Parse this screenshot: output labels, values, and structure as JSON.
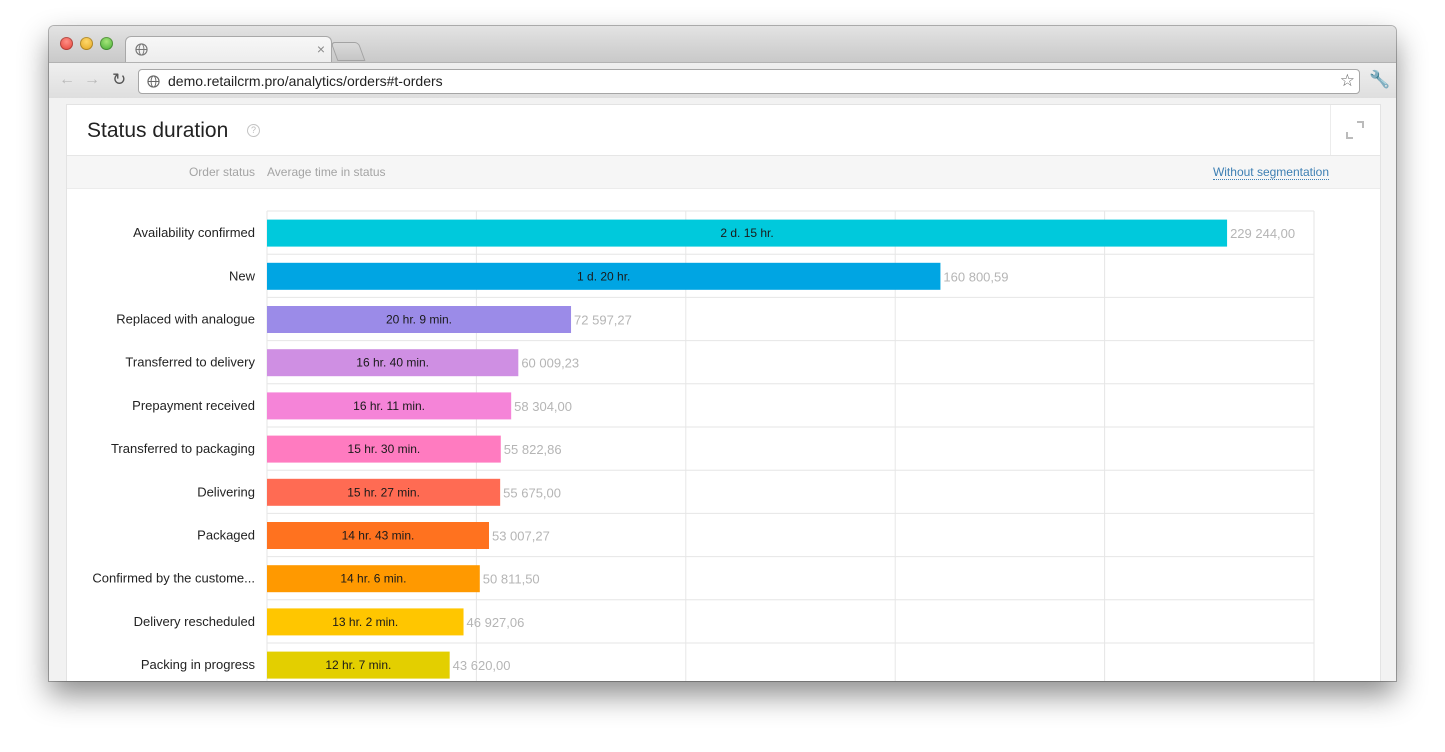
{
  "browser": {
    "tab_title": "",
    "url": "demo.retailcrm.pro/analytics/orders#t-orders"
  },
  "widget": {
    "title": "Status duration",
    "col_status": "Order status",
    "col_avg": "Average time in status",
    "segmentation_link": "Without segmentation"
  },
  "chart_data": {
    "type": "bar",
    "orientation": "horizontal",
    "categories": [
      "Availability confirmed",
      "New",
      "Replaced with analogue",
      "Transferred to delivery",
      "Prepayment received",
      "Transferred to packaging",
      "Delivering",
      "Packaged",
      "Confirmed by the custome...",
      "Delivery rescheduled",
      "Packing in progress"
    ],
    "values": [
      229244.0,
      160800.59,
      72597.27,
      60009.23,
      58304.0,
      55822.86,
      55675.0,
      53007.27,
      50811.5,
      46927.06,
      43620.0
    ],
    "value_labels": [
      "229 244,00",
      "160 800,59",
      "72 597,27",
      "60 009,23",
      "58 304,00",
      "55 822,86",
      "55 675,00",
      "53 007,27",
      "50 811,50",
      "46 927,06",
      "43 620,00"
    ],
    "bar_labels": [
      "2 d. 15 hr.",
      "1 d. 20 hr.",
      "20 hr. 9 min.",
      "16 hr. 40 min.",
      "16 hr. 11 min.",
      "15 hr. 30 min.",
      "15 hr. 27 min.",
      "14 hr. 43 min.",
      "14 hr. 6 min.",
      "13 hr. 2 min.",
      "12 hr. 7 min."
    ],
    "colors": [
      "#00c9dc",
      "#00a5e3",
      "#9b8be8",
      "#cf8fe3",
      "#f584d8",
      "#ff7bc0",
      "#ff6b53",
      "#ff721f",
      "#ff9900",
      "#ffc600",
      "#e3cf00"
    ],
    "xlim": [
      0,
      250000
    ],
    "grid": true
  }
}
